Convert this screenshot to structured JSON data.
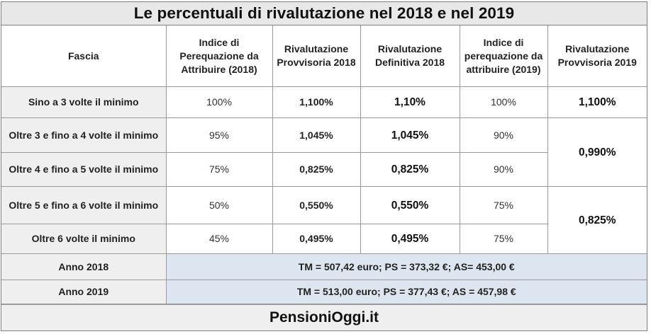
{
  "title": "Le percentuali di rivalutazione nel 2018 e nel 2019",
  "headers": [
    "Fascia",
    "Indice di Perequazione da Attribuire (2018)",
    "Rivalutazione Provvisoria 2018",
    "Rivalutazione Definitiva 2018",
    "Indice di perequazione da attribuire (2019)",
    "Rivalutazione Provvisoria 2019"
  ],
  "rows": [
    {
      "fascia": "Sino a 3 volte il minimo",
      "indice_2018": "100%",
      "provv_2018": "1,100%",
      "def_2018": "1,10%",
      "indice_2019": "100%",
      "provv_2019": "1,100%"
    },
    {
      "fascia": "Oltre 3 e fino a 4 volte il minimo",
      "indice_2018": "95%",
      "provv_2018": "1,045%",
      "def_2018": "1,045%",
      "indice_2019": "90%",
      "provv_2019": "0,990%"
    },
    {
      "fascia": "Oltre 4 e fino a 5 volte il minimo",
      "indice_2018": "75%",
      "provv_2018": "0,825%",
      "def_2018": "0,825%",
      "indice_2019": "90%"
    },
    {
      "fascia": "Oltre 5 e fino a 6 volte il minimo",
      "indice_2018": "50%",
      "provv_2018": "0,550%",
      "def_2018": "0,550%",
      "indice_2019": "75%",
      "provv_2019": "0,825%"
    },
    {
      "fascia": "Oltre 6 volte il minimo",
      "indice_2018": "45%",
      "provv_2018": "0,495%",
      "def_2018": "0,495%",
      "indice_2019": "75%"
    }
  ],
  "summary": [
    {
      "label": "Anno 2018",
      "value": "TM = 507,42 euro; PS = 373,32 €; AS= 453,00 €"
    },
    {
      "label": "Anno 2019",
      "value": "TM = 513,00 euro; PS = 377,43 €; AS = 457,98 €"
    }
  ],
  "footer": "PensioniOggi.it"
}
